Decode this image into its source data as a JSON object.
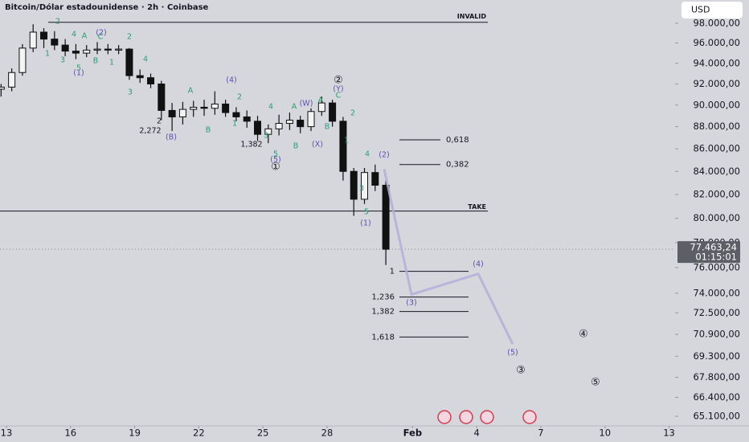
{
  "chart_data": {
    "type": "candlestick",
    "title": "Bitcoin/Dólar estadounidense · 2h · Coinbase",
    "currency": "USD",
    "x": [
      12.75,
      13.25,
      13.75,
      14.25,
      14.75,
      15.25,
      15.75,
      16.25,
      16.75,
      17.25,
      17.75,
      18.25,
      18.75,
      19.25,
      19.75,
      20.25,
      20.75,
      21.25,
      21.75,
      22.25,
      22.75,
      23.25,
      23.75,
      24.25,
      24.75,
      25.25,
      25.75,
      26.25,
      26.75,
      27.25,
      27.75,
      28.25,
      28.75,
      29.25,
      29.75,
      30.25,
      30.75
    ],
    "open": [
      91500,
      91700,
      93100,
      95500,
      97100,
      96400,
      95800,
      95200,
      95000,
      95300,
      95400,
      95300,
      95400,
      92800,
      92600,
      92000,
      89500,
      88900,
      89600,
      89800,
      89700,
      90100,
      89300,
      88900,
      88500,
      87300,
      87800,
      88300,
      88600,
      88000,
      89400,
      90200,
      88500,
      84000,
      81600,
      83900,
      82800
    ],
    "high": [
      92000,
      93500,
      95900,
      97900,
      97500,
      97200,
      96400,
      95900,
      95800,
      96100,
      95900,
      95800,
      95500,
      93400,
      93000,
      92300,
      90200,
      90300,
      90400,
      90500,
      91300,
      90500,
      89800,
      89500,
      89000,
      88200,
      89100,
      89300,
      89000,
      89700,
      90800,
      90500,
      88900,
      84300,
      84300,
      84600,
      83200
    ],
    "low": [
      90800,
      91300,
      92800,
      95100,
      95500,
      95300,
      94700,
      94400,
      94600,
      94900,
      94900,
      94900,
      92400,
      92100,
      91600,
      88600,
      87600,
      88200,
      88900,
      89000,
      89100,
      88900,
      88500,
      87900,
      86700,
      86500,
      87200,
      87700,
      87400,
      87600,
      89000,
      88000,
      83200,
      80200,
      81200,
      82300,
      76200
    ],
    "close": [
      91700,
      93100,
      95500,
      97100,
      96400,
      95800,
      95200,
      95000,
      95300,
      95400,
      95300,
      95400,
      92800,
      92600,
      92000,
      89500,
      88900,
      89600,
      89800,
      89700,
      90100,
      89300,
      88900,
      88500,
      87300,
      87800,
      88300,
      88600,
      88000,
      89400,
      90200,
      88500,
      84000,
      81600,
      83900,
      82800,
      77463.24
    ],
    "up_color": "#f4f4f4",
    "down_color": "#111111",
    "log_scale": true,
    "grid": false,
    "xlim": [
      12.7,
      44.28
    ],
    "ylim": [
      64560,
      100400
    ],
    "xticks": [
      13,
      16,
      19,
      22,
      25,
      28,
      {
        "value": 32,
        "label": "Feb"
      },
      {
        "value": 35,
        "label": "4"
      },
      {
        "value": 38,
        "label": "7"
      },
      {
        "value": 41,
        "label": "10"
      },
      {
        "value": 44,
        "label": "13"
      }
    ],
    "yticks": [
      {
        "value": 98000,
        "label": "98.000,00"
      },
      {
        "value": 96000,
        "label": "96.000,00"
      },
      {
        "value": 94000,
        "label": "94.000,00"
      },
      {
        "value": 92000,
        "label": "92.000,00"
      },
      {
        "value": 90000,
        "label": "90.000,00"
      },
      {
        "value": 88000,
        "label": "88.000,00"
      },
      {
        "value": 86000,
        "label": "86.000,00"
      },
      {
        "value": 84000,
        "label": "84.000,00"
      },
      {
        "value": 82000,
        "label": "82.000,00"
      },
      {
        "value": 80000,
        "label": "80.000,00"
      },
      {
        "value": 78000,
        "label": "78.000,00"
      },
      {
        "value": 76000,
        "label": "76.000,00"
      },
      {
        "value": 74000,
        "label": "74.000,00"
      },
      {
        "value": 72500,
        "label": "72.500,00"
      },
      {
        "value": 70900,
        "label": "70.900,00"
      },
      {
        "value": 69300,
        "label": "69.300,00"
      },
      {
        "value": 67800,
        "label": "67.800,00"
      },
      {
        "value": 66400,
        "label": "66.400,00"
      },
      {
        "value": 65100,
        "label": "65.100,00"
      }
    ],
    "last_price": {
      "value": 77463.24,
      "label": "77.463,24"
    },
    "countdown": "01:15:01",
    "levels": [
      {
        "label": "INVALID",
        "value": 98100
      },
      {
        "label": "TAKE",
        "value": 80600
      },
      {
        "label": "0,618",
        "value": 86800
      },
      {
        "label": "0,382",
        "value": 84600
      },
      {
        "label": "1",
        "value": 75700
      },
      {
        "label": "1,236",
        "value": 73700
      },
      {
        "label": "1,382",
        "value": 72600
      },
      {
        "label": "1,618",
        "value": 70700
      }
    ],
    "projection": {
      "x": [
        30.67,
        31.95,
        35.07,
        36.68
      ],
      "values": [
        84200,
        73900,
        75500,
        70200
      ],
      "color": "#b3aedb"
    },
    "annotations": [
      "②",
      "(Y)",
      "C",
      "①",
      "(5)",
      "5",
      "(2)",
      "4",
      "(1)",
      "5",
      "(4)",
      "(3)",
      "(5)",
      "③",
      "④",
      "⑤",
      "(2)",
      "(1)",
      "(4)",
      "(W)",
      "(X)",
      "(B)",
      "2",
      "4",
      "A",
      "C",
      "2",
      "4",
      "3",
      "A",
      "B",
      "2",
      "1",
      "4",
      "3",
      "B",
      "A",
      "A",
      "B",
      "2",
      "1",
      "3",
      "1",
      "3",
      "B",
      "1",
      "5",
      "2,272",
      "2",
      "1,382"
    ]
  }
}
